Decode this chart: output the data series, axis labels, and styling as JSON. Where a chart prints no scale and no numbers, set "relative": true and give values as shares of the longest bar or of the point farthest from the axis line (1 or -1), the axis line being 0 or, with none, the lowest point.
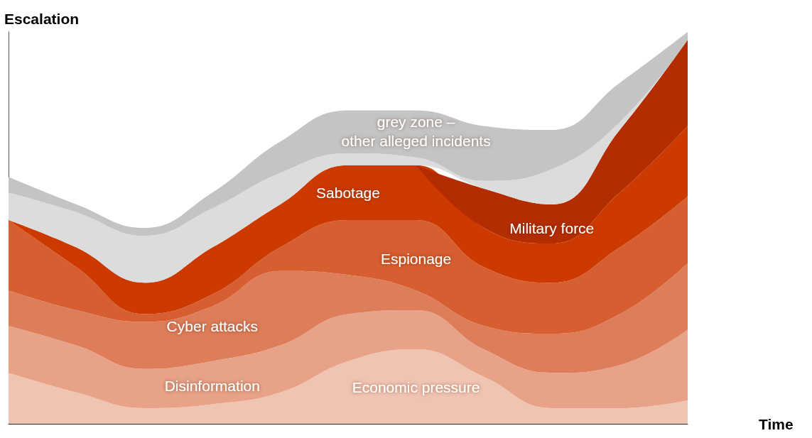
{
  "chart_data": {
    "type": "area",
    "stacked": true,
    "relative": true,
    "xlabel": "Time",
    "ylabel": "Escalation",
    "grid": false,
    "legend": false,
    "categories": [
      null,
      null,
      null,
      null,
      null,
      null,
      null,
      null,
      null,
      null,
      null
    ],
    "series": [
      {
        "name": "Economic pressure",
        "color": "#f0c4b2",
        "values": [
          0.13,
          0.08,
          0.04,
          0.05,
          0.08,
          0.16,
          0.19,
          0.12,
          0.04,
          0.04,
          0.06
        ]
      },
      {
        "name": "Disinformation",
        "color": "#e8a287",
        "values": [
          0.12,
          0.12,
          0.1,
          0.11,
          0.12,
          0.12,
          0.1,
          0.07,
          0.09,
          0.11,
          0.18
        ]
      },
      {
        "name": "Cyber attacks",
        "color": "#de7d5a",
        "values": [
          0.09,
          0.09,
          0.12,
          0.14,
          0.19,
          0.1,
          0.05,
          0.06,
          0.1,
          0.13,
          0.17
        ]
      },
      {
        "name": "Espionage",
        "color": "#d65e30",
        "values": [
          0.18,
          0.11,
          0.02,
          0.03,
          0.06,
          0.14,
          0.18,
          0.15,
          0.13,
          0.17,
          0.17
        ]
      },
      {
        "name": "Sabotage",
        "color": "#cc3a00",
        "values": [
          0,
          0.05,
          0.08,
          0.12,
          0.11,
          0.14,
          0.14,
          0.1,
          0.1,
          0.14,
          0.18
        ]
      },
      {
        "name": "Military force",
        "color": "#b32d00",
        "values": [
          null,
          null,
          null,
          null,
          null,
          null,
          0,
          0.1,
          0.1,
          0.16,
          0.22
        ]
      },
      {
        "color": "#dcdcdc",
        "values": [
          0.07,
          0.09,
          0.12,
          0.1,
          0.08,
          0.03,
          0.02,
          0.02,
          0.09,
          0.02,
          0
        ]
      },
      {
        "name": "grey zone – other alleged incidents",
        "color": "#c4c4c4",
        "values": [
          0.04,
          0.02,
          0.02,
          0.04,
          0.08,
          0.11,
          0.12,
          0.14,
          0.1,
          0.1,
          0.02
        ]
      }
    ]
  }
}
